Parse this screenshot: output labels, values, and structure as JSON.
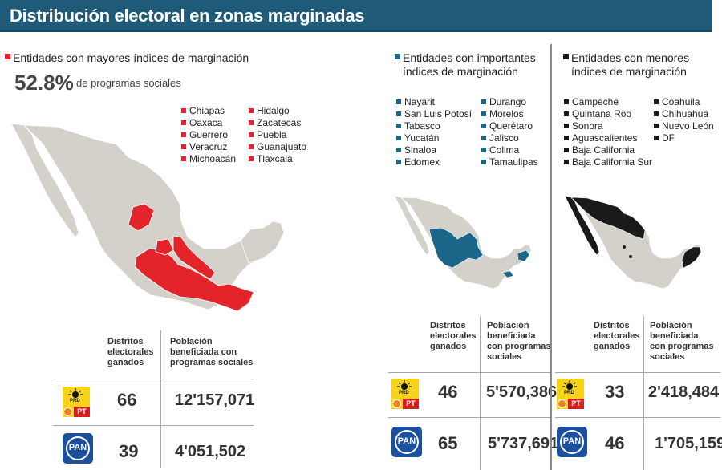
{
  "header": {
    "title": "Distribución electoral en zonas marginadas"
  },
  "colors": {
    "high": "#e3242b",
    "mid": "#1c6689",
    "low": "#1a1a1a",
    "base": "#d4d1cb",
    "header": "#1f5a78"
  },
  "high": {
    "title": "Entidades con mayores índices de marginación",
    "percent": "52.8%",
    "percent_text": "de programas sociales",
    "states_col1": [
      "Chiapas",
      "Oaxaca",
      "Guerrero",
      "Veracruz",
      "Michoacán"
    ],
    "states_col2": [
      "Hidalgo",
      "Zacatecas",
      "Puebla",
      "Guanajuato",
      "Tlaxcala"
    ],
    "table": {
      "col1": "Distritos electorales ganados",
      "col2": "Población beneficiada con programas sociales",
      "rows": [
        {
          "party": "PRD-PT",
          "districts": "66",
          "population": "12'157,071"
        },
        {
          "party": "PAN",
          "districts": "39",
          "population": "4'051,502"
        }
      ]
    }
  },
  "mid": {
    "title_line1": "Entidades con importantes",
    "title_line2": "índices de marginación",
    "states_col1": [
      "Nayarit",
      "San Luis Potosí",
      "Tabasco",
      "Yucatán",
      "Sinaloa",
      "Edomex"
    ],
    "states_col2": [
      "Durango",
      "Morelos",
      "Querétaro",
      "Jalisco",
      "Colima",
      "Tamaulipas"
    ],
    "table": {
      "col1": "Distritos electorales ganados",
      "col2": "Población beneficiada con programas sociales",
      "rows": [
        {
          "party": "PRD-PT",
          "districts": "46",
          "population": "5'570,386"
        },
        {
          "party": "PAN",
          "districts": "65",
          "population": "5'737,691"
        }
      ]
    }
  },
  "low": {
    "title_line1": "Entidades con menores",
    "title_line2": "índices de marginación",
    "states_col1": [
      "Campeche",
      "Quintana Roo",
      "Sonora",
      "Aguascalientes",
      "Baja California",
      "Baja California Sur"
    ],
    "states_col2": [
      "Coahuila",
      "Chihuahua",
      "Nuevo León",
      "DF"
    ],
    "table": {
      "col1": "Distritos electorales ganados",
      "col2": "Población beneficiada con programas sociales",
      "rows": [
        {
          "party": "PRD-PT",
          "districts": "33",
          "population": "2'418,484"
        },
        {
          "party": "PAN",
          "districts": "46",
          "population": "1'705,159"
        }
      ]
    }
  },
  "logos": {
    "prd_top": "PRD",
    "pt": "PT",
    "pan": "PAN"
  }
}
